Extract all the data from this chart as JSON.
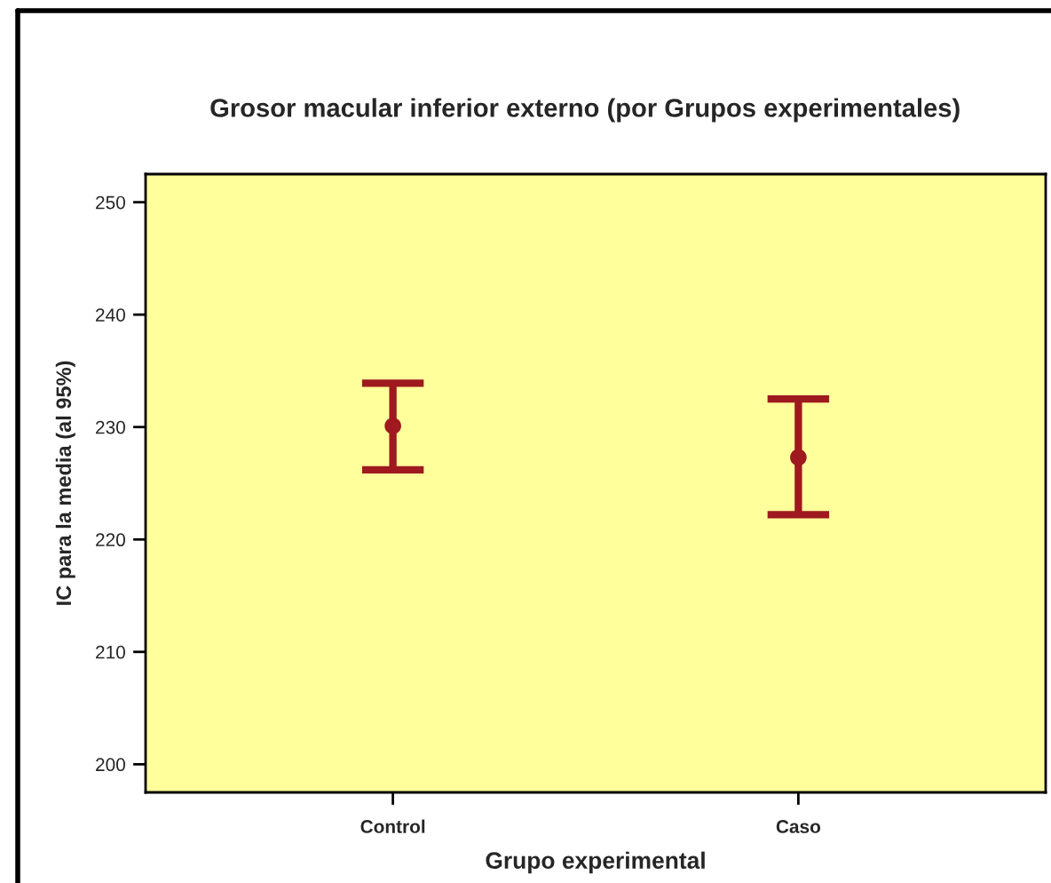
{
  "chart_data": {
    "type": "scatter",
    "title": "Grosor macular inferior externo (por Grupos experimentales)",
    "xlabel": "Grupo experimental",
    "ylabel": "IC para la media (al 95%)",
    "categories": [
      "Control",
      "Caso"
    ],
    "series": [
      {
        "color": "#9e1a1f",
        "values": [
          230.1,
          227.3
        ],
        "errors": [
          [
            226.2,
            233.9
          ],
          [
            222.2,
            232.5
          ]
        ]
      }
    ],
    "ylim": [
      197.5,
      252.5
    ],
    "yticks": [
      200,
      210,
      220,
      230,
      240,
      250
    ],
    "grid": false,
    "legend": false,
    "marker": "circle"
  }
}
